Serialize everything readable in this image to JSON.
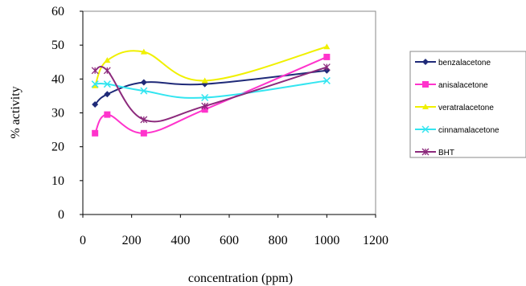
{
  "chart_data": {
    "type": "line",
    "xlabel": "concentration (ppm)",
    "ylabel": "% activity",
    "xlim": [
      0,
      1200
    ],
    "ylim": [
      0,
      60
    ],
    "xticks": [
      "0",
      "200",
      "400",
      "600",
      "800",
      "1000",
      "1200"
    ],
    "yticks": [
      "0",
      "10",
      "20",
      "30",
      "40",
      "50",
      "60"
    ],
    "grid": false,
    "legend_position": "right",
    "series": [
      {
        "name": "benzalacetone",
        "color": "#1f2a78",
        "marker": "diamond",
        "x": [
          50,
          100,
          250,
          500,
          1000
        ],
        "y": [
          32.5,
          35.5,
          39.0,
          38.5,
          42.5
        ]
      },
      {
        "name": "anisalacetone",
        "color": "#ff33cc",
        "marker": "square",
        "x": [
          50,
          100,
          250,
          500,
          1000
        ],
        "y": [
          24.0,
          29.5,
          24.0,
          31.0,
          46.5
        ]
      },
      {
        "name": "veratralacetone",
        "color": "#f0f000",
        "marker": "triangle",
        "x": [
          50,
          100,
          250,
          500,
          1000
        ],
        "y": [
          38.0,
          45.5,
          48.0,
          39.5,
          49.5
        ]
      },
      {
        "name": "cinnamalacetone",
        "color": "#33e5f0",
        "marker": "x",
        "x": [
          50,
          100,
          250,
          500,
          1000
        ],
        "y": [
          38.5,
          38.5,
          36.5,
          34.5,
          39.5
        ]
      },
      {
        "name": "BHT",
        "color": "#8c2a7c",
        "marker": "star",
        "x": [
          50,
          100,
          250,
          500,
          1000
        ],
        "y": [
          42.5,
          42.5,
          28.0,
          32.0,
          43.5
        ]
      }
    ]
  }
}
